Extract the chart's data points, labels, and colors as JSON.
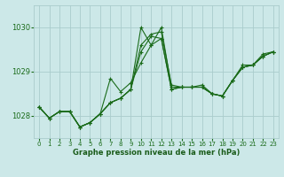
{
  "background_color": "#cce8e8",
  "grid_color": "#aacccc",
  "line_color": "#1a6b1a",
  "marker_color": "#1a6b1a",
  "xlabel": "Graphe pression niveau de la mer (hPa)",
  "xlabel_color": "#1a5c1a",
  "ylabel_ticks": [
    1028,
    1029,
    1030
  ],
  "xlim": [
    -0.5,
    23.5
  ],
  "ylim": [
    1027.5,
    1030.5
  ],
  "xtick_labels": [
    "0",
    "1",
    "2",
    "3",
    "4",
    "5",
    "6",
    "7",
    "8",
    "9",
    "10",
    "11",
    "12",
    "13",
    "14",
    "15",
    "16",
    "17",
    "18",
    "19",
    "20",
    "21",
    "22",
    "23"
  ],
  "series": [
    [
      1028.2,
      1027.95,
      1028.1,
      1028.1,
      1027.75,
      1027.85,
      1028.05,
      1028.85,
      1028.55,
      1028.75,
      1029.2,
      1029.6,
      1029.75,
      1028.6,
      1028.65,
      1028.65,
      1028.7,
      1028.5,
      1028.45,
      1028.8,
      1029.15,
      1029.15,
      1029.4,
      1029.45
    ],
    [
      1028.2,
      1027.95,
      1028.1,
      1028.1,
      1027.75,
      1027.85,
      1028.05,
      1028.3,
      1028.4,
      1028.6,
      1029.6,
      1029.85,
      1029.9,
      1028.7,
      1028.65,
      1028.65,
      1028.65,
      1028.5,
      1028.45,
      1028.8,
      1029.1,
      1029.15,
      1029.35,
      1029.45
    ],
    [
      1028.2,
      1027.95,
      1028.1,
      1028.1,
      1027.75,
      1027.85,
      1028.05,
      1028.3,
      1028.4,
      1028.6,
      1030.0,
      1029.6,
      1030.0,
      1028.65,
      1028.65,
      1028.65,
      1028.65,
      1028.5,
      1028.45,
      1028.8,
      1029.1,
      1029.15,
      1029.35,
      1029.45
    ],
    [
      1028.2,
      1027.95,
      1028.1,
      1028.1,
      1027.75,
      1027.85,
      1028.05,
      1028.3,
      1028.4,
      1028.6,
      1029.45,
      1029.8,
      1029.75,
      1028.6,
      1028.65,
      1028.65,
      1028.65,
      1028.5,
      1028.45,
      1028.8,
      1029.1,
      1029.15,
      1029.35,
      1029.45
    ]
  ]
}
